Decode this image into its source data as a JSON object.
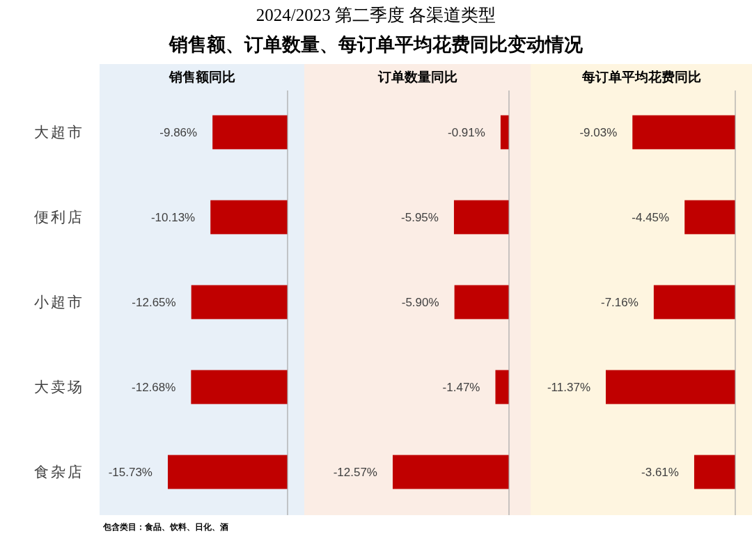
{
  "chart_data": [
    {
      "type": "other",
      "title": "2024/2023 第二季度 各渠道类型",
      "subtitle": "销售额、订单数量、每订单平均花费同比变动情况"
    },
    {
      "type": "bar",
      "orientation": "horizontal",
      "title": "销售额同比",
      "categories": [
        "大超市",
        "便利店",
        "小超市",
        "大卖场",
        "食杂店"
      ],
      "values": [
        -9.86,
        -10.13,
        -12.65,
        -12.68,
        -15.73
      ],
      "value_labels": [
        "-9.86%",
        "-10.13%",
        "-12.65%",
        "-12.68%",
        "-15.73%"
      ],
      "color": "#c00000",
      "tick_labels": "y",
      "annotations": [
        "包含类目：食品、饮料、日化、酒"
      ]
    },
    {
      "type": "bar",
      "orientation": "horizontal",
      "title": "订单数量同比",
      "categories": [
        null,
        null,
        null,
        null,
        null
      ],
      "values": [
        -0.91,
        -5.95,
        -5.9,
        -1.47,
        -12.57
      ],
      "value_labels": [
        "-0.91%",
        "-5.95%",
        "-5.90%",
        "-1.47%",
        "-12.57%"
      ],
      "color": "#c00000"
    },
    {
      "type": "bar",
      "orientation": "horizontal",
      "title": "每订单平均花费同比",
      "categories": [
        null,
        null,
        null,
        null,
        null
      ],
      "values": [
        -9.03,
        -4.45,
        -7.16,
        -11.37,
        -3.61
      ],
      "value_labels": [
        "-9.03%",
        "-4.45%",
        "-7.16%",
        "-11.37%",
        "-3.61%"
      ],
      "color": "#c00000"
    }
  ]
}
